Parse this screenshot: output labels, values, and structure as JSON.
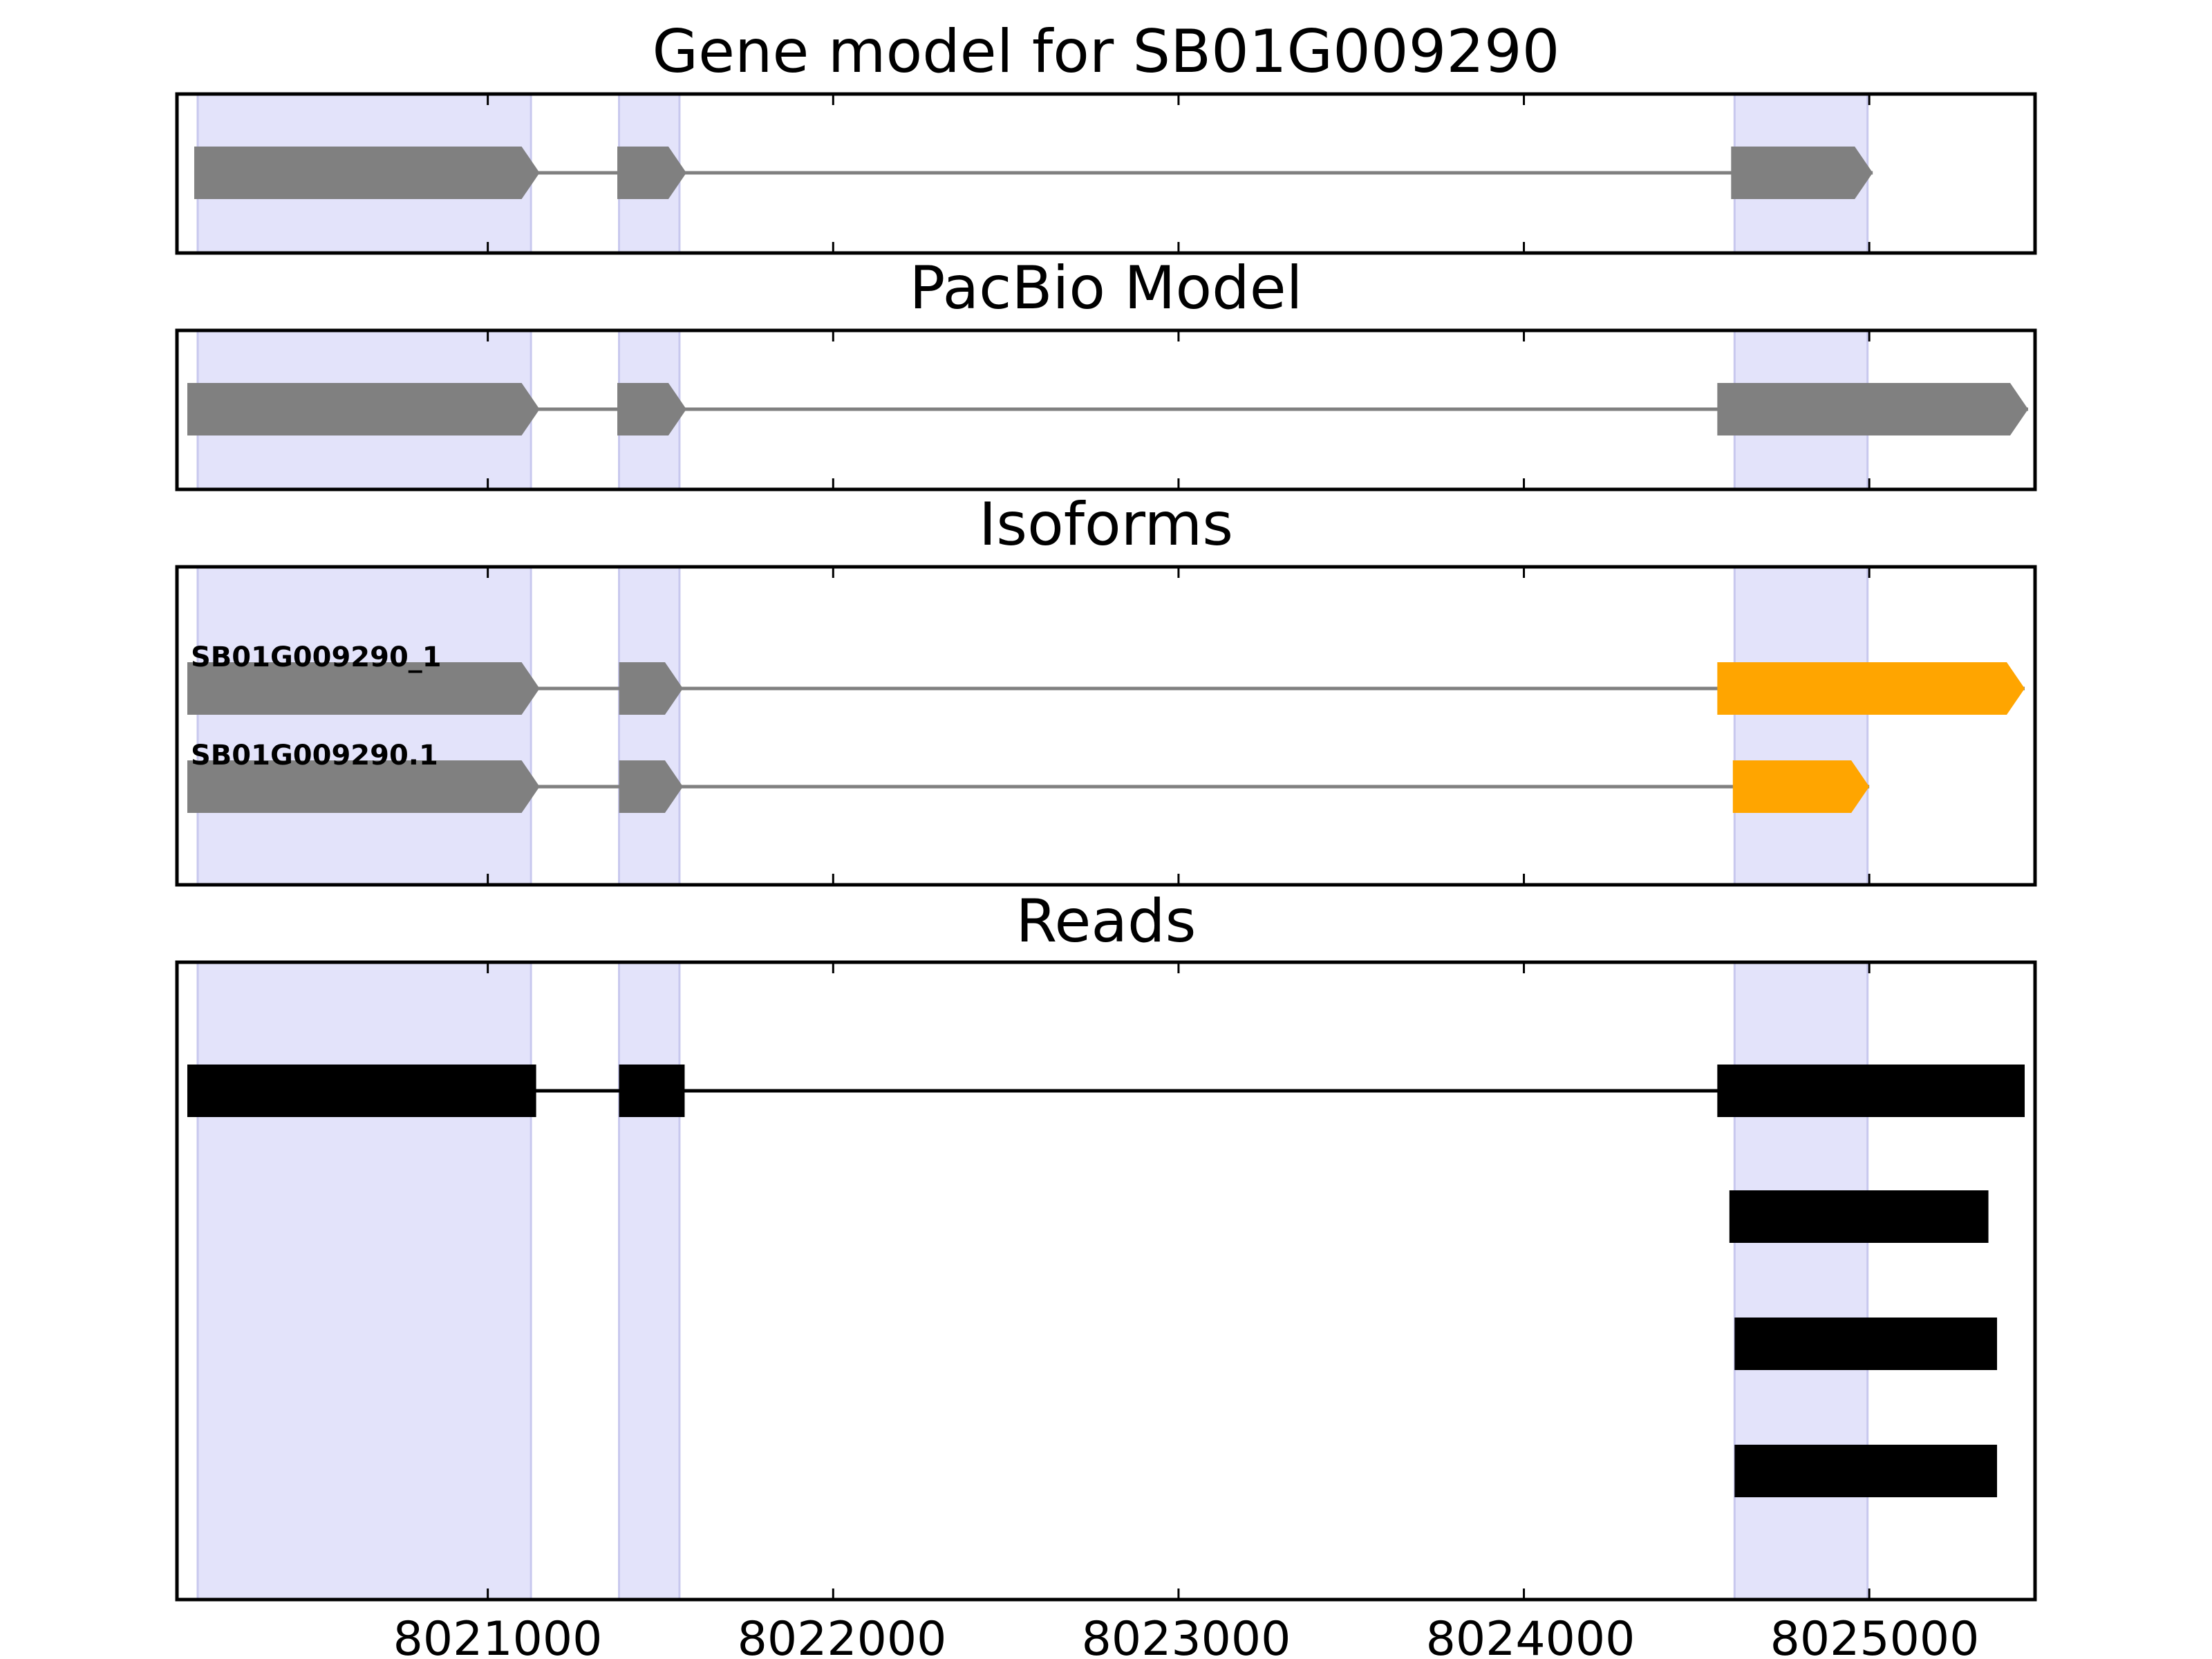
{
  "chart_data": {
    "type": "gene_track",
    "x_axis": {
      "range": [
        8020100,
        8025480
      ],
      "ticks": [
        8021000,
        8022000,
        8023000,
        8024000,
        8025000
      ],
      "tick_labels": [
        "8021000",
        "8022000",
        "8023000",
        "8024000",
        "8025000"
      ]
    },
    "highlight_color": "#e3e3fa",
    "highlight_regions": [
      [
        8020160,
        8021125
      ],
      [
        8021380,
        8021555
      ],
      [
        8024610,
        8024995
      ]
    ],
    "panels": [
      {
        "key": "gene_model",
        "title": "Gene model for SB01G009290",
        "tracks": [
          {
            "label": "",
            "color": "#808080",
            "strand": "+",
            "exons": [
              [
                8020150,
                8021150
              ],
              [
                8021375,
                8021575
              ],
              [
                8024600,
                8025010
              ]
            ]
          }
        ]
      },
      {
        "key": "pacbio",
        "title": "PacBio Model",
        "tracks": [
          {
            "label": "",
            "color": "#808080",
            "strand": "+",
            "exons": [
              [
                8020130,
                8021150
              ],
              [
                8021375,
                8021575
              ],
              [
                8024560,
                8025460
              ]
            ]
          }
        ]
      },
      {
        "key": "isoforms",
        "title": "Isoforms",
        "tracks": [
          {
            "label": "SB01G009290_1",
            "color": "#808080",
            "last_exon_color": "#ffa500",
            "strand": "+",
            "exons": [
              [
                8020130,
                8021150
              ],
              [
                8021380,
                8021565
              ],
              [
                8024560,
                8025450
              ]
            ]
          },
          {
            "label": "SB01G009290.1",
            "color": "#808080",
            "last_exon_color": "#ffa500",
            "strand": "+",
            "exons": [
              [
                8020130,
                8021150
              ],
              [
                8021380,
                8021565
              ],
              [
                8024605,
                8025000
              ]
            ]
          }
        ]
      },
      {
        "key": "reads",
        "title": "Reads",
        "reads": [
          {
            "exons": [
              [
                8020130,
                8021140
              ],
              [
                8021380,
                8021570
              ],
              [
                8024560,
                8025450
              ]
            ]
          },
          {
            "exons": [
              [
                8024595,
                8025345
              ]
            ]
          },
          {
            "exons": [
              [
                8024610,
                8025370
              ]
            ]
          },
          {
            "exons": [
              [
                8024610,
                8025370
              ]
            ]
          }
        ]
      }
    ]
  }
}
